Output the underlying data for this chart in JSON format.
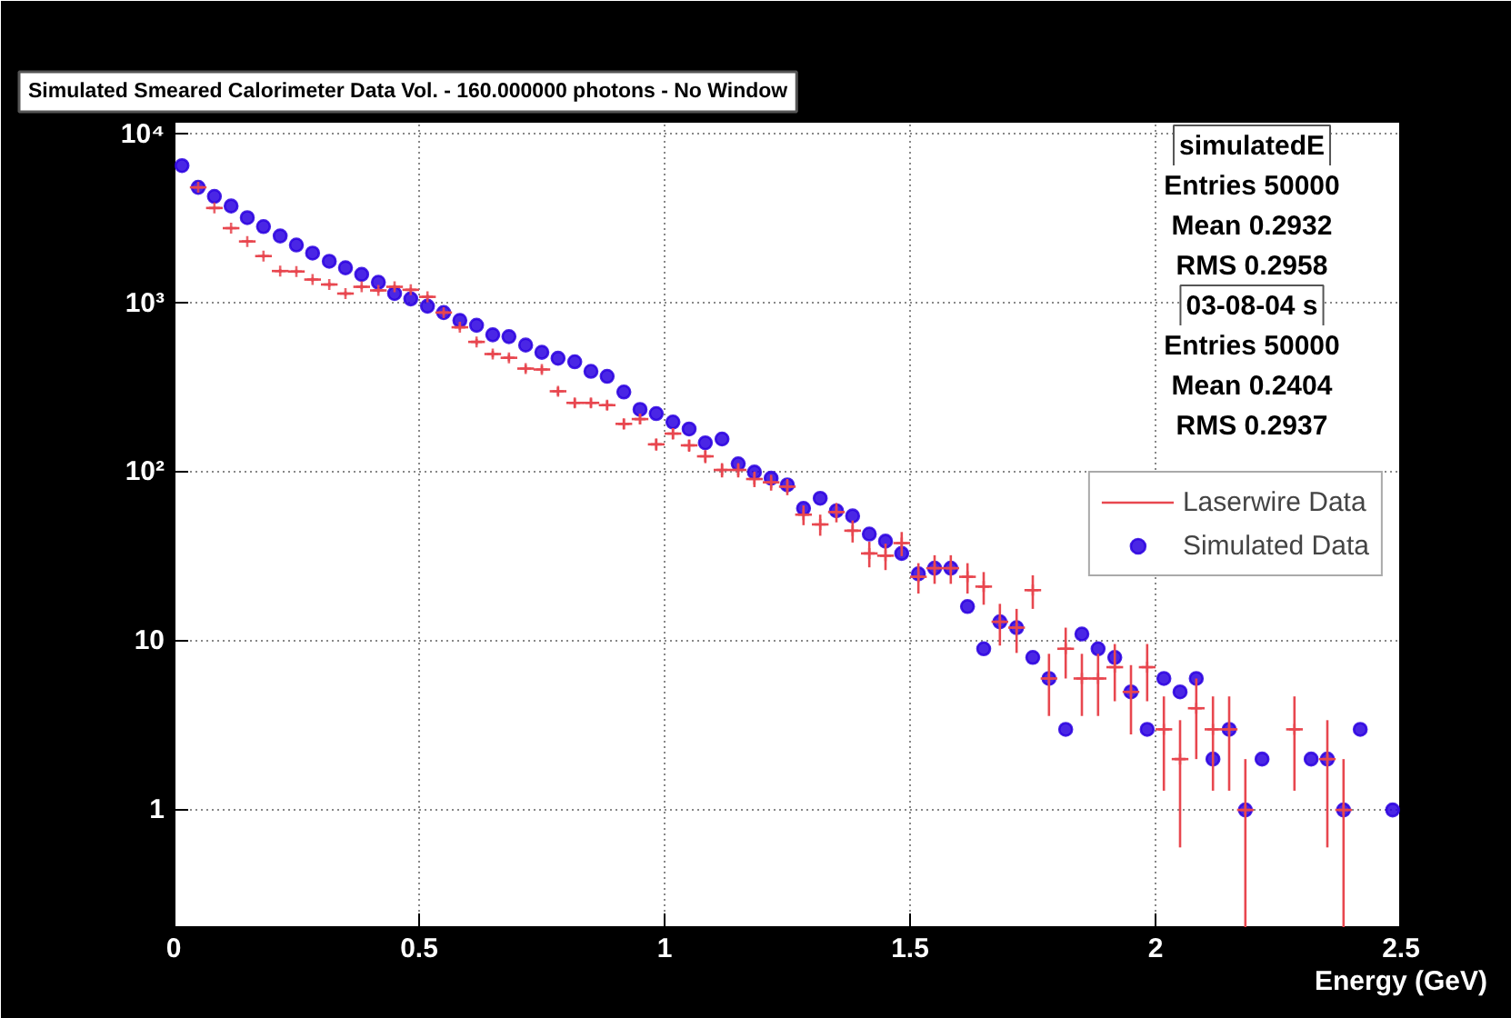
{
  "chart_data": {
    "type": "scatter",
    "title": "Simulated Smeared Calorimeter Data Vol. - 160.000000 photons - No Window",
    "xlabel": "Energy (GeV)",
    "x": [
      0.017,
      0.05,
      0.083,
      0.117,
      0.15,
      0.183,
      0.217,
      0.25,
      0.283,
      0.317,
      0.35,
      0.383,
      0.417,
      0.45,
      0.483,
      0.517,
      0.55,
      0.583,
      0.617,
      0.65,
      0.683,
      0.717,
      0.75,
      0.783,
      0.817,
      0.85,
      0.883,
      0.917,
      0.95,
      0.983,
      1.017,
      1.05,
      1.083,
      1.117,
      1.15,
      1.183,
      1.217,
      1.25,
      1.283,
      1.317,
      1.35,
      1.383,
      1.417,
      1.45,
      1.483,
      1.517,
      1.55,
      1.583,
      1.617,
      1.65,
      1.683,
      1.717,
      1.75,
      1.783,
      1.817,
      1.85,
      1.883,
      1.917,
      1.95,
      1.983,
      2.017,
      2.05,
      2.083,
      2.117,
      2.15,
      2.183,
      2.217,
      2.25,
      2.283,
      2.317,
      2.35,
      2.383,
      2.417,
      2.45,
      2.483
    ],
    "series": [
      {
        "name": "Simulated Data",
        "marker": "circle",
        "color": "#2a00e0",
        "values": [
          6520,
          4850,
          4290,
          3760,
          3210,
          2840,
          2500,
          2210,
          1980,
          1770,
          1620,
          1480,
          1330,
          1140,
          1060,
          960,
          880,
          790,
          740,
          650,
          634,
          565,
          512,
          472,
          450,
          395,
          369,
          298,
          235,
          222,
          198,
          180,
          149,
          157,
          112,
          100,
          92,
          84,
          61,
          70,
          59,
          55,
          43,
          39,
          33,
          25,
          27,
          27,
          16,
          9,
          13,
          12,
          8,
          6,
          3,
          11,
          9,
          8,
          5,
          3,
          6,
          5,
          6,
          2,
          3,
          1,
          2,
          null,
          null,
          2,
          2,
          1,
          3,
          null,
          1
        ]
      },
      {
        "name": "Laserwire Data",
        "marker": "cross",
        "color": "#e8474f",
        "values": [
          null,
          4850,
          3660,
          2780,
          2320,
          1900,
          1550,
          1540,
          1380,
          1290,
          1140,
          1250,
          1190,
          1250,
          1200,
          1090,
          880,
          720,
          590,
          500,
          475,
          410,
          405,
          301,
          257,
          257,
          249,
          193,
          206,
          146,
          169,
          144,
          124,
          103,
          103,
          91,
          87,
          82,
          56,
          49,
          58,
          45,
          33,
          32,
          38,
          24,
          27,
          27,
          24,
          21,
          13,
          12,
          20,
          6,
          9,
          6,
          6,
          7,
          5,
          7,
          3,
          2,
          4,
          3,
          3,
          1,
          null,
          null,
          3,
          null,
          2,
          1,
          null,
          null,
          null
        ],
        "errors": [
          null,
          70,
          60,
          53,
          48,
          44,
          39,
          39,
          37,
          36,
          34,
          35,
          34,
          35,
          35,
          33,
          30,
          27,
          24,
          22,
          22,
          20,
          20,
          17,
          16,
          16,
          16,
          14,
          14,
          12,
          13,
          12,
          11,
          10,
          10,
          9.5,
          9.3,
          9,
          7.5,
          7,
          7.6,
          6.7,
          5.7,
          5.7,
          6.2,
          4.9,
          5.2,
          5.2,
          4.9,
          4.6,
          3.6,
          3.5,
          4.5,
          2.4,
          3,
          2.4,
          2.4,
          2.6,
          2.2,
          2.6,
          1.7,
          1.4,
          2,
          1.7,
          1.7,
          [
            0.2,
            2
          ],
          null,
          null,
          1.7,
          null,
          1.4,
          [
            0.2,
            2
          ],
          null,
          null,
          null
        ],
        "xerrors": [
          null,
          0.017,
          0.017,
          0.017,
          0.017,
          0.017,
          0.017,
          0.017,
          0.017,
          0.017,
          0.017,
          0.017,
          0.017,
          0.017,
          0.017,
          0.017,
          0.017,
          0.017,
          0.017,
          0.017,
          0.017,
          0.017,
          0.017,
          0.017,
          0.017,
          0.017,
          0.017,
          0.017,
          0.017,
          0.017,
          0.017,
          0.017,
          0.017,
          0.017,
          0.017,
          0.017,
          0.017,
          0.017,
          0.017,
          0.017,
          0.017,
          0.017,
          0.017,
          0.017,
          0.017,
          0.017,
          0.017,
          0.017,
          0.017,
          0.017,
          0.017,
          0.017,
          0.017,
          0.017,
          0.017,
          0.017,
          0.017,
          0.017,
          0.017,
          0.017,
          0.017,
          0.017,
          0.017,
          0.017,
          0.017,
          0.017,
          null,
          null,
          0.017,
          null,
          0.017,
          0.017,
          null,
          null,
          null
        ]
      }
    ],
    "xlim": [
      0,
      2.5
    ],
    "ylim": [
      0.2,
      12000
    ],
    "log": "y",
    "xticks": [
      0,
      0.5,
      1,
      1.5,
      2,
      2.5
    ],
    "yticks": [
      1,
      10,
      {
        "value": 100,
        "label": "10²"
      },
      {
        "value": 1000,
        "label": "10³"
      },
      {
        "value": 10000,
        "label": "10⁴"
      }
    ],
    "grid": true,
    "legend": "right",
    "annotations": [
      "simulatedE",
      "Entries 50000",
      "Mean 0.2932",
      "RMS 0.2958",
      "03-08-04 s",
      "Entries 50000",
      "Mean 0.2404",
      "RMS 0.2937"
    ]
  }
}
